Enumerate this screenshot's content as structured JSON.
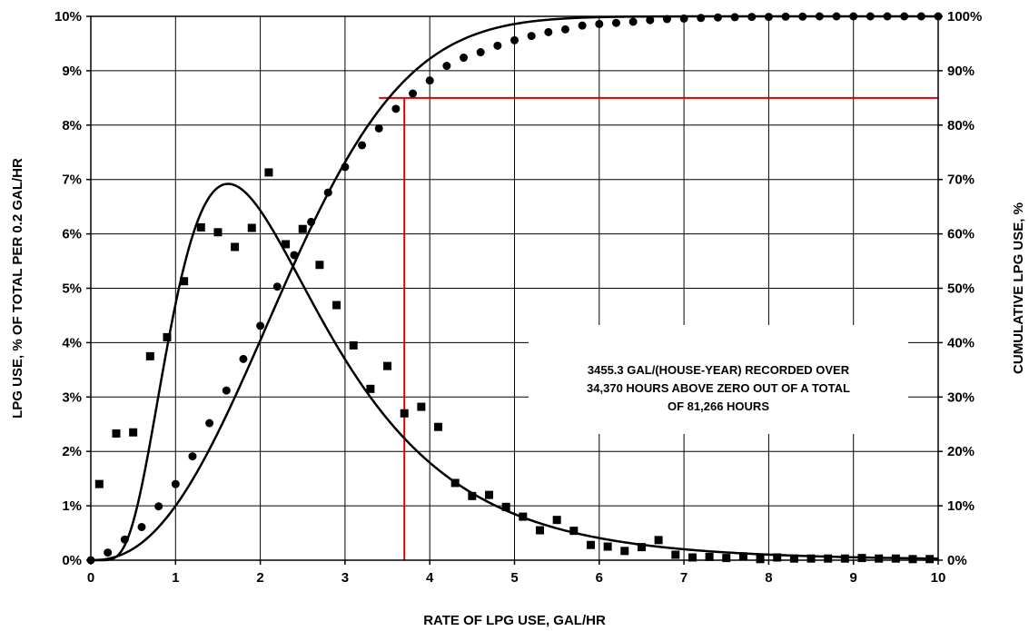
{
  "chart_data": {
    "type": "scatter",
    "xlabel": "RATE OF LPG USE, GAL/HR",
    "ylabel_left": "LPG USE, % OF TOTAL PER 0.2 GAL/HR",
    "ylabel_right": "CUMULATIVE LPG USE, %",
    "xlim": [
      0,
      10
    ],
    "ylim_left": [
      0,
      10
    ],
    "ylim_right": [
      0,
      100
    ],
    "x_ticks": [
      "0",
      "1",
      "2",
      "3",
      "4",
      "5",
      "6",
      "7",
      "8",
      "9",
      "10"
    ],
    "y_left_ticks": [
      "0%",
      "1%",
      "2%",
      "3%",
      "4%",
      "5%",
      "6%",
      "7%",
      "8%",
      "9%",
      "10%"
    ],
    "y_right_ticks": [
      "0%",
      "10%",
      "20%",
      "30%",
      "40%",
      "50%",
      "60%",
      "70%",
      "80%",
      "90%",
      "100%"
    ],
    "grid": true,
    "annotation": {
      "lines": [
        "3455.3 GAL/(HOUSE-YEAR) RECORDED OVER",
        "34,370 HOURS ABOVE ZERO OUT OF A TOTAL",
        "OF 81,266 HOURS"
      ]
    },
    "reference_lines": {
      "color": "#e00000",
      "vertical_x": 3.7,
      "horizontal_y_right": 85,
      "horizontal_x_start": 3.4
    },
    "series": [
      {
        "marker": "square",
        "axis": "left",
        "x": [
          0.1,
          0.3,
          0.5,
          0.7,
          0.9,
          1.1,
          1.3,
          1.5,
          1.7,
          1.9,
          2.1,
          2.3,
          2.5,
          2.7,
          2.9,
          3.1,
          3.3,
          3.5,
          3.7,
          3.9,
          4.1,
          4.3,
          4.5,
          4.7,
          4.9,
          5.1,
          5.3,
          5.5,
          5.7,
          5.9,
          6.1,
          6.3,
          6.5,
          6.7,
          6.9,
          7.1,
          7.3,
          7.5,
          7.7,
          7.9,
          8.1,
          8.3,
          8.5,
          8.7,
          8.9,
          9.1,
          9.3,
          9.5,
          9.7,
          9.9
        ],
        "y": [
          1.4,
          2.33,
          2.35,
          3.75,
          4.1,
          5.13,
          6.12,
          6.03,
          5.76,
          6.11,
          7.13,
          5.81,
          6.09,
          5.43,
          4.69,
          3.95,
          3.15,
          3.57,
          2.7,
          2.82,
          2.45,
          1.42,
          1.18,
          1.2,
          0.98,
          0.8,
          0.55,
          0.74,
          0.54,
          0.28,
          0.25,
          0.17,
          0.24,
          0.37,
          0.1,
          0.05,
          0.06,
          0.04,
          0.07,
          0.02,
          0.05,
          0.03,
          0.03,
          0.03,
          0.03,
          0.04,
          0.03,
          0.03,
          0.02,
          0.02
        ]
      },
      {
        "marker": "circle",
        "axis": "right",
        "x": [
          0.0,
          0.2,
          0.4,
          0.6,
          0.8,
          1.0,
          1.2,
          1.4,
          1.6,
          1.8,
          2.0,
          2.2,
          2.4,
          2.6,
          2.8,
          3.0,
          3.2,
          3.4,
          3.6,
          3.8,
          4.0,
          4.2,
          4.4,
          4.6,
          4.8,
          5.0,
          5.2,
          5.4,
          5.6,
          5.8,
          6.0,
          6.2,
          6.4,
          6.6,
          6.8,
          7.0,
          7.2,
          7.4,
          7.6,
          7.8,
          8.0,
          8.2,
          8.4,
          8.6,
          8.8,
          9.0,
          9.2,
          9.4,
          9.6,
          9.8,
          10.0
        ],
        "y": [
          0.0,
          1.4,
          3.8,
          6.1,
          9.9,
          14.0,
          19.1,
          25.2,
          31.2,
          37.0,
          43.1,
          50.3,
          56.1,
          62.2,
          67.6,
          72.3,
          76.3,
          79.4,
          83.0,
          85.8,
          88.2,
          90.9,
          92.4,
          93.4,
          94.6,
          95.6,
          96.4,
          97.1,
          97.6,
          98.3,
          98.6,
          98.8,
          99.0,
          99.3,
          99.5,
          99.6,
          99.7,
          99.8,
          99.85,
          99.9,
          99.9,
          99.95,
          99.95,
          100,
          100,
          100,
          100,
          100,
          100,
          100,
          100
        ]
      }
    ],
    "fitted_curves": [
      {
        "axis": "left",
        "shape": "lognormal-density-scaled",
        "peak_x": 1.62,
        "peak_y": 6.92
      },
      {
        "axis": "right",
        "shape": "cumulative",
        "x_at_50": 2.27
      }
    ]
  }
}
